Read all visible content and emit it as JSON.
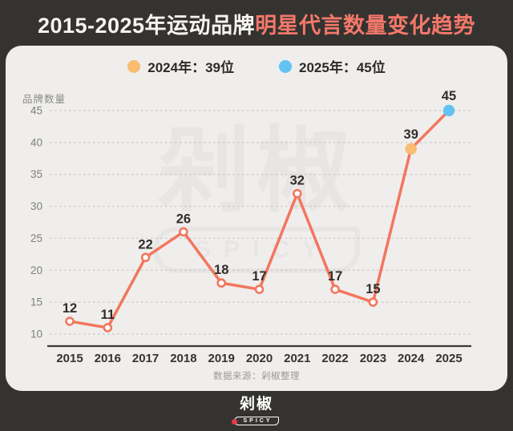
{
  "header": {
    "title_plain": "2015-2025年运动品牌",
    "title_accent": "明星代言数量变化趋势"
  },
  "legend": [
    {
      "label": "2024年：39位",
      "color": "#f8bc72"
    },
    {
      "label": "2025年：45位",
      "color": "#62c3f3"
    }
  ],
  "chart_data": {
    "type": "line",
    "title": "2015-2025年运动品牌明星代言数量变化趋势",
    "ylabel": "品牌数量",
    "xlabel": "",
    "categories": [
      "2015",
      "2016",
      "2017",
      "2018",
      "2019",
      "2020",
      "2021",
      "2022",
      "2023",
      "2024",
      "2025"
    ],
    "values": [
      12,
      11,
      22,
      26,
      18,
      17,
      32,
      17,
      15,
      39,
      45
    ],
    "ylim": [
      10,
      45
    ],
    "yticks": [
      10,
      15,
      20,
      25,
      30,
      35,
      40,
      45
    ],
    "grid": "horizontal-dashed",
    "legend_position": "top",
    "marker_default": "hollow-circle",
    "highlight_points": {
      "2024": "#f8bc72",
      "2025": "#62c3f3"
    }
  },
  "source": "数据来源：剁椒整理",
  "watermark": {
    "text": "剁椒",
    "subtext": "SPICY"
  },
  "footer_logo": {
    "text": "剁椒",
    "subtext": "SPICY"
  },
  "colors": {
    "background_dark": "#343330",
    "card_bg": "#efeeec",
    "title_white": "#f5f4f2",
    "accent": "#f3786a",
    "line": "#f3765e",
    "grid": "#c7c7c5",
    "axis": "#3a3936",
    "xtick_text": "#34332f",
    "tick_text": "#7e7e7b",
    "value_label": "#2f2e2b",
    "source_text": "#9b9a97",
    "watermark": "#e7e6e4",
    "logo_red": "#e8374a"
  }
}
